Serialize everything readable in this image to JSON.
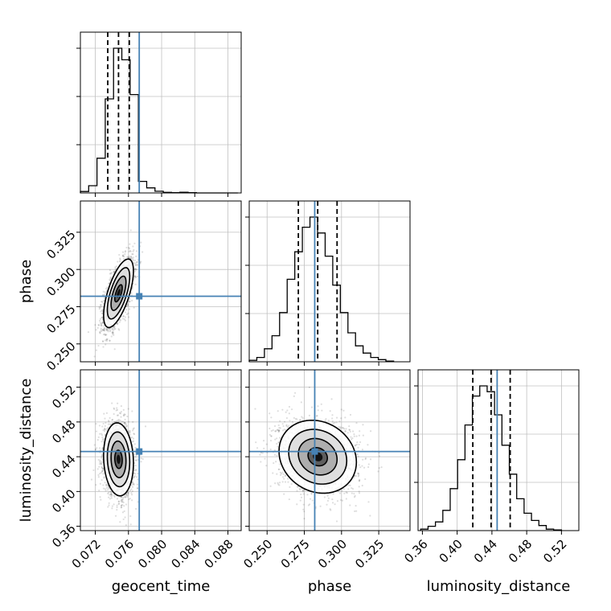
{
  "chart_data": {
    "type": "corner",
    "parameters": [
      {
        "name": "geocent_time",
        "truth": 0.0773,
        "range": [
          0.0702,
          0.0896
        ],
        "ticks": [
          "0.072",
          "0.076",
          "0.080",
          "0.084",
          "0.088"
        ],
        "tick_values": [
          0.072,
          0.076,
          0.08,
          0.084,
          0.088
        ],
        "quantiles": [
          0.0735,
          0.0748,
          0.0761
        ]
      },
      {
        "name": "phase",
        "truth": 0.282,
        "range": [
          0.238,
          0.346
        ],
        "ticks": [
          "0.250",
          "0.275",
          "0.300",
          "0.325"
        ],
        "tick_values": [
          0.25,
          0.275,
          0.3,
          0.325
        ],
        "quantiles": [
          0.271,
          0.284,
          0.297
        ]
      },
      {
        "name": "luminosity_distance",
        "truth": 0.446,
        "range": [
          0.355,
          0.54
        ],
        "ticks": [
          "0.36",
          "0.40",
          "0.44",
          "0.48",
          "0.52"
        ],
        "tick_values": [
          0.36,
          0.4,
          0.44,
          0.48,
          0.52
        ],
        "quantiles": [
          0.418,
          0.439,
          0.461
        ]
      }
    ],
    "histograms": [
      {
        "param": "geocent_time",
        "bins": [
          0.0702,
          0.0712,
          0.0722,
          0.0732,
          0.0742,
          0.0752,
          0.0762,
          0.0772,
          0.0782,
          0.0792,
          0.0802,
          0.0812,
          0.0822,
          0.0832,
          0.0842,
          0.0852,
          0.0862,
          0.0872,
          0.0882,
          0.0892
        ],
        "counts": [
          0.01,
          0.05,
          0.24,
          0.65,
          1.0,
          0.92,
          0.68,
          0.08,
          0.035,
          0.012,
          0.004,
          0.002,
          0.005,
          0.002,
          0.0,
          0.0,
          0.0,
          0.0,
          0.0
        ]
      },
      {
        "param": "phase",
        "bins": [
          0.238,
          0.2431,
          0.2482,
          0.2533,
          0.2584,
          0.2635,
          0.2686,
          0.2737,
          0.2788,
          0.2839,
          0.289,
          0.2941,
          0.2992,
          0.3043,
          0.3094,
          0.3145,
          0.3196,
          0.3247,
          0.3298,
          0.335
        ],
        "counts": [
          0.01,
          0.03,
          0.09,
          0.18,
          0.34,
          0.57,
          0.76,
          0.93,
          1.0,
          0.89,
          0.73,
          0.53,
          0.34,
          0.2,
          0.11,
          0.06,
          0.03,
          0.015,
          0.005
        ]
      },
      {
        "param": "luminosity_distance",
        "bins": [
          0.358,
          0.3665,
          0.375,
          0.3835,
          0.392,
          0.4005,
          0.409,
          0.4175,
          0.426,
          0.4345,
          0.443,
          0.4515,
          0.46,
          0.4685,
          0.477,
          0.4855,
          0.494,
          0.5025,
          0.511,
          0.52
        ],
        "counts": [
          0.01,
          0.03,
          0.06,
          0.14,
          0.29,
          0.49,
          0.73,
          0.93,
          1.0,
          0.96,
          0.8,
          0.59,
          0.39,
          0.22,
          0.12,
          0.07,
          0.035,
          0.01,
          0.005
        ]
      }
    ],
    "pairs": [
      {
        "x": "geocent_time",
        "y": "phase",
        "center": [
          0.0748,
          0.284
        ],
        "sd": [
          0.0009,
          0.0115
        ],
        "rho": 0.65
      },
      {
        "x": "geocent_time",
        "y": "luminosity_distance",
        "center": [
          0.0748,
          0.437
        ],
        "sd": [
          0.0009,
          0.021
        ],
        "rho": -0.1
      },
      {
        "x": "phase",
        "y": "luminosity_distance",
        "center": [
          0.284,
          0.44
        ],
        "sd": [
          0.013,
          0.021
        ],
        "rho": -0.15
      }
    ],
    "colors": {
      "truth": "#4682b4",
      "hist": "#000000",
      "grid": "#c0c0c0",
      "contour": "#000000"
    }
  }
}
